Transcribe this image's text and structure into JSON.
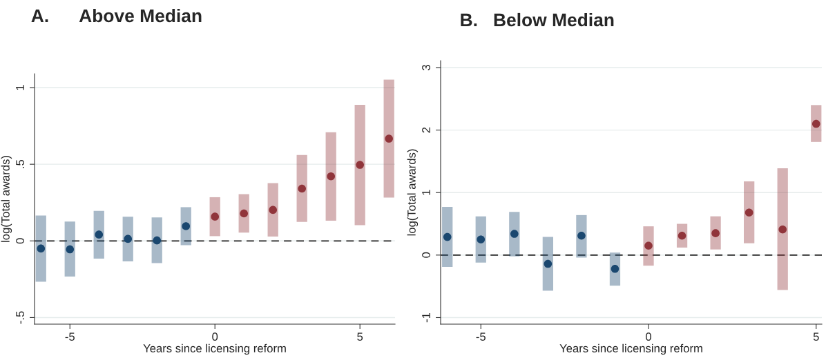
{
  "chart_data": [
    {
      "type": "scatter",
      "title": "A.      Above Median",
      "xlabel": "Years since licensing reform",
      "ylabel": "log(Total awards)",
      "xlim": [
        -6.22,
        6.21
      ],
      "ylim": [
        -0.543,
        1.09
      ],
      "xticks": [
        -5,
        0,
        5
      ],
      "yticks": [
        {
          "value": -0.5,
          "label": "-.5"
        },
        0,
        {
          "value": 0.5,
          "label": ".5"
        },
        1
      ],
      "grid": "y",
      "marker": "circle",
      "ref_lines": [
        {
          "axis": "y",
          "value": 0,
          "line_style": "dashed",
          "color": "#222222"
        }
      ],
      "series": [
        {
          "color": "#1a476f",
          "x": [
            -6,
            -5,
            -4,
            -3,
            -2,
            -1
          ],
          "values": [
            -0.05,
            -0.055,
            0.041,
            0.013,
            0.003,
            0.096
          ],
          "errors": [
            [
              -0.266,
              0.165
            ],
            [
              -0.233,
              0.126
            ],
            [
              -0.116,
              0.196
            ],
            [
              -0.134,
              0.158
            ],
            [
              -0.145,
              0.153
            ],
            [
              -0.028,
              0.22
            ]
          ]
        },
        {
          "color": "#90353b",
          "x": [
            0,
            1,
            2,
            3,
            4,
            5,
            6
          ],
          "values": [
            0.158,
            0.179,
            0.202,
            0.341,
            0.421,
            0.496,
            0.667
          ],
          "errors": [
            [
              0.031,
              0.285
            ],
            [
              0.054,
              0.305
            ],
            [
              0.028,
              0.377
            ],
            [
              0.124,
              0.56
            ],
            [
              0.132,
              0.709
            ],
            [
              0.103,
              0.888
            ],
            [
              0.282,
              1.052
            ]
          ]
        }
      ]
    },
    {
      "type": "scatter",
      "title": "B.   Below Median",
      "xlabel": "Years since licensing reform",
      "ylabel": "log(Total awards)",
      "xlim": [
        -6.2,
        5.17
      ],
      "ylim": [
        -1.105,
        3.11
      ],
      "xticks": [
        -5,
        0,
        5
      ],
      "yticks": [
        -1,
        0,
        1,
        2,
        3
      ],
      "grid": "y",
      "marker": "circle",
      "ref_lines": [
        {
          "axis": "y",
          "value": 0,
          "line_style": "dashed",
          "color": "#222222"
        }
      ],
      "series": [
        {
          "color": "#1a476f",
          "x": [
            -6,
            -5,
            -4,
            -3,
            -2,
            -1
          ],
          "values": [
            0.29,
            0.25,
            0.34,
            -0.14,
            0.31,
            -0.22
          ],
          "errors": [
            [
              -0.19,
              0.77
            ],
            [
              -0.12,
              0.62
            ],
            [
              -0.02,
              0.69
            ],
            [
              -0.57,
              0.29
            ],
            [
              -0.04,
              0.64
            ],
            [
              -0.49,
              0.04
            ]
          ]
        },
        {
          "color": "#90353b",
          "x": [
            0,
            1,
            2,
            3,
            4,
            5
          ],
          "values": [
            0.15,
            0.31,
            0.35,
            0.68,
            0.41,
            2.1
          ],
          "errors": [
            [
              -0.17,
              0.46
            ],
            [
              0.12,
              0.5
            ],
            [
              0.09,
              0.62
            ],
            [
              0.19,
              1.18
            ],
            [
              -0.56,
              1.39
            ],
            [
              1.81,
              2.4
            ]
          ]
        }
      ]
    }
  ]
}
